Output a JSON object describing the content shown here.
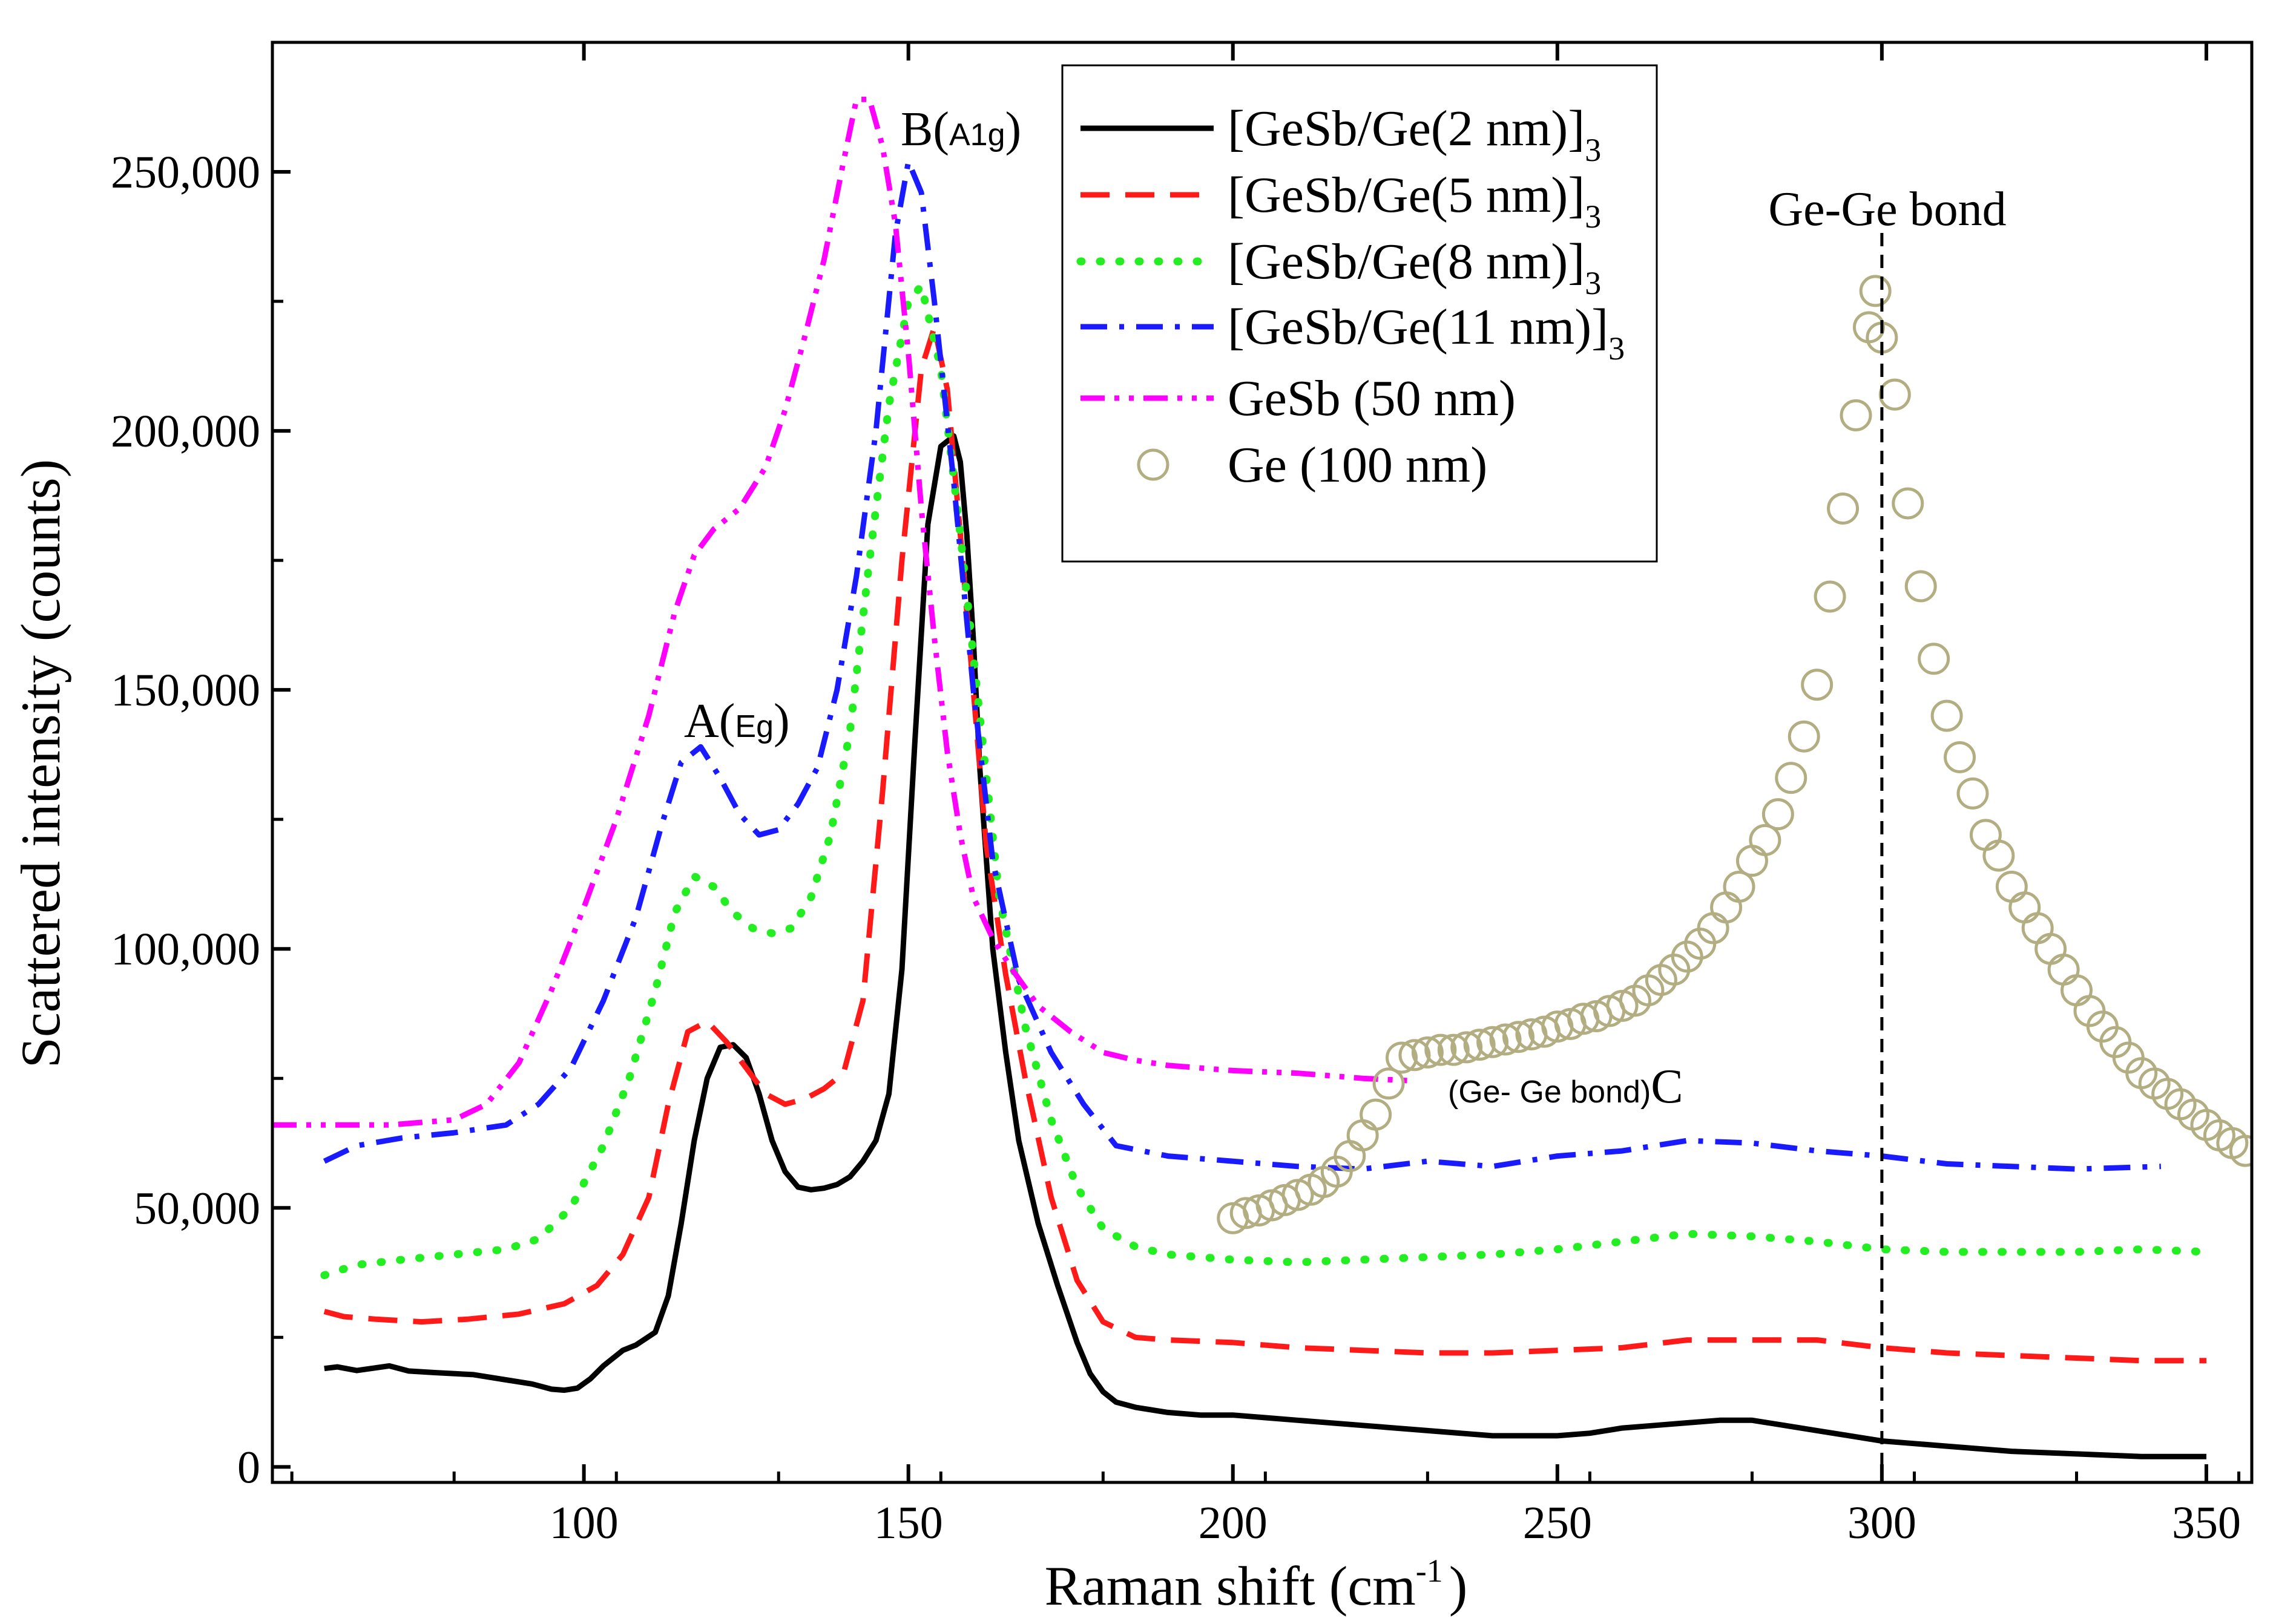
{
  "chart_data": {
    "type": "line",
    "title": "",
    "xlabel": "Raman shift (cm",
    "xlabel_sup": "-1",
    "xlabel_close": ")",
    "ylabel": "Scattered intensity (counts)",
    "xlim": [
      52,
      357
    ],
    "ylim": [
      -3000,
      275000
    ],
    "x_ticks": [
      100,
      150,
      200,
      250,
      300,
      350
    ],
    "x_tick_labels": [
      "100",
      "150",
      "200",
      "250",
      "300",
      "350"
    ],
    "y_ticks": [
      0,
      50000,
      100000,
      150000,
      200000,
      250000
    ],
    "y_tick_labels": [
      "0",
      "50,000",
      "100,000",
      "150,000",
      "200,000",
      "250,000"
    ],
    "legend_position": "top-center",
    "series": [
      {
        "name": "[GeSb/Ge(2 nm)]",
        "subscript": "3",
        "color": "#000000",
        "style": "solid",
        "x": [
          60,
          62,
          65,
          70,
          73,
          77,
          83,
          88,
          92,
          95,
          97,
          99,
          101,
          103,
          106,
          108,
          111,
          113,
          115,
          117,
          119,
          121,
          123,
          125,
          127,
          129,
          131,
          133,
          135,
          137,
          139,
          141,
          143,
          145,
          147,
          149,
          151,
          153,
          155,
          157,
          158,
          159,
          160,
          161,
          163,
          165,
          167,
          170,
          173,
          176,
          178,
          180,
          182,
          185,
          190,
          195,
          200,
          205,
          210,
          220,
          230,
          240,
          250,
          255,
          260,
          265,
          270,
          275,
          280,
          285,
          290,
          295,
          300,
          305,
          310,
          315,
          320,
          330,
          340,
          350
        ],
        "values": [
          19000,
          19300,
          18600,
          19500,
          18500,
          18200,
          17800,
          16800,
          16000,
          15000,
          14800,
          15200,
          17000,
          19500,
          22500,
          23500,
          26000,
          33000,
          47000,
          63000,
          75000,
          81000,
          81500,
          79000,
          72000,
          63000,
          57000,
          54000,
          53500,
          53800,
          54500,
          56000,
          59000,
          63000,
          72000,
          96000,
          140000,
          182000,
          197000,
          199000,
          194000,
          180000,
          160000,
          135000,
          100000,
          80000,
          63000,
          47000,
          35000,
          24000,
          18000,
          14500,
          12500,
          11500,
          10500,
          10000,
          10000,
          9500,
          9000,
          8000,
          7000,
          6000,
          6000,
          6500,
          7500,
          8000,
          8500,
          9000,
          9000,
          8000,
          7000,
          6000,
          5000,
          4500,
          4000,
          3500,
          3000,
          2500,
          2000,
          2000
        ]
      },
      {
        "name": "[GeSb/Ge(5 nm)]",
        "subscript": "3",
        "color": "#ff1a1a",
        "style": "dashed",
        "x": [
          60,
          63,
          68,
          75,
          82,
          90,
          97,
          102,
          106,
          110,
          113,
          116,
          119,
          122,
          125,
          128,
          131,
          134,
          137,
          140,
          143,
          146,
          149,
          152,
          154,
          156,
          158,
          160,
          162,
          165,
          168,
          172,
          176,
          180,
          185,
          190,
          200,
          210,
          220,
          230,
          240,
          250,
          260,
          270,
          280,
          290,
          300,
          310,
          320,
          330,
          340,
          350
        ],
        "values": [
          30000,
          29000,
          28500,
          28000,
          28500,
          29500,
          31500,
          35000,
          41000,
          52000,
          70000,
          84000,
          86000,
          82000,
          77000,
          72000,
          70000,
          71000,
          73000,
          76000,
          90000,
          130000,
          175000,
          212000,
          220000,
          208000,
          180000,
          150000,
          120000,
          95000,
          75000,
          52000,
          36000,
          28000,
          25000,
          24500,
          24000,
          23000,
          22500,
          22000,
          22000,
          22500,
          23000,
          24500,
          24500,
          24500,
          23000,
          22000,
          21500,
          21000,
          20500,
          20500
        ]
      },
      {
        "name": "[GeSb/Ge(8 nm)]",
        "subscript": "3",
        "color": "#22ee22",
        "style": "dotted",
        "x": [
          60,
          65,
          72,
          80,
          88,
          93,
          98,
          103,
          107,
          111,
          114,
          117,
          120,
          123,
          126,
          129,
          132,
          135,
          138,
          141,
          144,
          147,
          150,
          152,
          155,
          158,
          161,
          164,
          168,
          172,
          176,
          180,
          185,
          190,
          200,
          210,
          220,
          230,
          240,
          250,
          260,
          270,
          280,
          290,
          300,
          310,
          320,
          330,
          340,
          350
        ],
        "values": [
          37000,
          39000,
          40000,
          41000,
          42000,
          44000,
          50000,
          62000,
          75000,
          92000,
          107000,
          114000,
          112000,
          107000,
          104000,
          103000,
          104000,
          110000,
          122000,
          142000,
          175000,
          205000,
          225000,
          228000,
          212000,
          180000,
          145000,
          110000,
          85000,
          67000,
          54000,
          46000,
          42500,
          41000,
          40000,
          39500,
          40000,
          40500,
          41000,
          42000,
          43500,
          45000,
          44500,
          43500,
          42000,
          41500,
          41500,
          41500,
          42000,
          41500
        ]
      },
      {
        "name": "[GeSb/Ge(11 nm)]",
        "subscript": "3",
        "color": "#1a1aff",
        "style": "dashdot",
        "x": [
          60,
          65,
          72,
          80,
          88,
          93,
          98,
          103,
          108,
          112,
          115,
          118,
          121,
          124,
          127,
          130,
          133,
          136,
          139,
          142,
          145,
          148,
          150,
          152,
          154,
          157,
          160,
          163,
          167,
          172,
          177,
          182,
          190,
          200,
          210,
          220,
          230,
          240,
          250,
          260,
          270,
          280,
          290,
          300,
          310,
          320,
          330,
          343
        ],
        "values": [
          59000,
          62000,
          63500,
          64500,
          66000,
          70000,
          77000,
          90000,
          106000,
          124000,
          136000,
          139000,
          133000,
          126000,
          122000,
          123000,
          128000,
          135000,
          150000,
          172000,
          200000,
          238000,
          252000,
          246000,
          225000,
          190000,
          150000,
          117000,
          94000,
          80000,
          70000,
          62000,
          60000,
          59000,
          58000,
          57500,
          59000,
          58000,
          60000,
          61000,
          63000,
          62500,
          61000,
          60000,
          58500,
          58000,
          57500,
          58000
        ]
      },
      {
        "name": "GeSb (50 nm)",
        "subscript": "",
        "color": "#ff00ff",
        "style": "dashdotdot",
        "x": [
          52,
          60,
          70,
          80,
          85,
          90,
          95,
          100,
          105,
          110,
          114,
          117,
          120,
          124,
          128,
          131,
          134,
          137,
          140,
          142,
          144,
          146,
          148,
          150,
          152,
          154,
          156,
          158,
          160,
          163,
          166,
          170,
          175,
          180,
          185,
          190,
          200,
          210,
          220,
          228
        ],
        "values": [
          66000,
          66000,
          66000,
          67000,
          70000,
          78000,
          92000,
          108000,
          125000,
          145000,
          165000,
          176000,
          181000,
          185000,
          193000,
          204000,
          218000,
          233000,
          252000,
          264000,
          264000,
          255000,
          240000,
          215000,
          185000,
          160000,
          138000,
          122000,
          110000,
          102000,
          96000,
          89000,
          84000,
          80000,
          78500,
          77500,
          76500,
          76000,
          75000,
          74500
        ]
      },
      {
        "name": "Ge (100 nm)",
        "subscript": "",
        "color": "#b3ad82",
        "style": "open-circles",
        "x": [
          200,
          202,
          204,
          206,
          208,
          210,
          212,
          214,
          216,
          218,
          220,
          222,
          224,
          226,
          228,
          230,
          232,
          234,
          236,
          238,
          240,
          242,
          244,
          246,
          248,
          250,
          252,
          254,
          256,
          258,
          260,
          262,
          264,
          266,
          268,
          270,
          272,
          274,
          276,
          278,
          280,
          282,
          284,
          286,
          288,
          290,
          292,
          294,
          296,
          298,
          299,
          300,
          302,
          304,
          306,
          308,
          310,
          312,
          314,
          316,
          318,
          320,
          322,
          324,
          326,
          328,
          330,
          332,
          334,
          336,
          338,
          340,
          342,
          344,
          346,
          348,
          350,
          352,
          354,
          356
        ],
        "values": [
          48000,
          49000,
          49500,
          50500,
          51500,
          52500,
          53500,
          55000,
          57000,
          60000,
          64000,
          68000,
          74000,
          79000,
          79500,
          80000,
          80500,
          80500,
          81000,
          81500,
          82000,
          82500,
          83000,
          83500,
          84000,
          85000,
          85500,
          86500,
          87000,
          88000,
          89000,
          90000,
          92000,
          94000,
          96000,
          98500,
          101000,
          104000,
          108000,
          112000,
          117000,
          121000,
          126000,
          133000,
          141000,
          151000,
          168000,
          185000,
          203000,
          220000,
          227000,
          218000,
          207000,
          186000,
          170000,
          156000,
          145000,
          137000,
          130000,
          122000,
          118000,
          112000,
          108000,
          104000,
          100000,
          96000,
          92000,
          88000,
          85000,
          82000,
          79000,
          76000,
          74000,
          72000,
          70000,
          68000,
          66000,
          64000,
          62500,
          61000
        ]
      }
    ],
    "reference_line": {
      "x": 300,
      "color": "#000000",
      "style": "dashed"
    },
    "annotations": [
      {
        "id": "A",
        "main": "A(",
        "inner": "Eg",
        "close": ")",
        "x": 124,
        "y": 139000
      },
      {
        "id": "B",
        "main": "B(",
        "inner": "A1g",
        "close": ")",
        "x": 155,
        "y": 257000
      },
      {
        "id": "C",
        "inner": "(Ge- Ge bond)",
        "main": "C",
        "x": 244,
        "y": 72000
      },
      {
        "id": "GeGe",
        "main": "Ge-Ge bond",
        "x": 300,
        "y": 240000
      }
    ]
  }
}
